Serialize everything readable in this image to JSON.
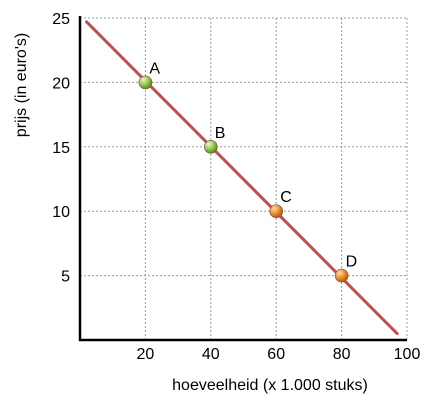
{
  "chart_data": {
    "type": "line",
    "xlabel": "hoeveelheid (x 1.000 stuks)",
    "ylabel": "prijs (in euro's)",
    "xlim": [
      0,
      100
    ],
    "ylim": [
      0,
      25
    ],
    "x_ticks": [
      20,
      40,
      60,
      80,
      100
    ],
    "y_ticks": [
      5,
      10,
      15,
      20,
      25
    ],
    "grid": true,
    "line": {
      "x": [
        2,
        97
      ],
      "y": [
        24.7,
        0.5
      ],
      "color": "#c0504d"
    },
    "points": [
      {
        "label": "A",
        "x": 20,
        "y": 20,
        "color": "#9bc94a"
      },
      {
        "label": "B",
        "x": 40,
        "y": 15,
        "color": "#9bc94a"
      },
      {
        "label": "C",
        "x": 60,
        "y": 10,
        "color": "#f28e2b"
      },
      {
        "label": "D",
        "x": 80,
        "y": 5,
        "color": "#f28e2b"
      }
    ]
  }
}
